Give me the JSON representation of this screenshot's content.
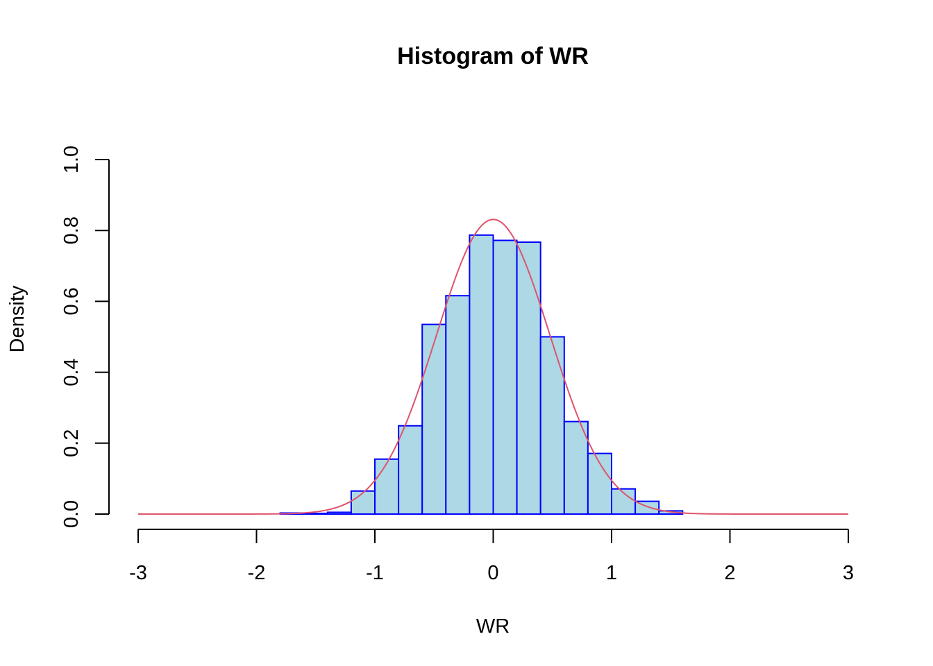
{
  "chart_data": {
    "type": "bar",
    "title": "Histogram of WR",
    "xlabel": "WR",
    "ylabel": "Density",
    "xlim": [
      -3,
      3
    ],
    "ylim": [
      0,
      1
    ],
    "x_ticks": [
      "-3",
      "-2",
      "-1",
      "0",
      "1",
      "2",
      "3"
    ],
    "y_ticks": [
      "0.0",
      "0.2",
      "0.4",
      "0.6",
      "0.8",
      "1.0"
    ],
    "grid": false,
    "bins": [
      {
        "x0": -1.8,
        "x1": -1.6,
        "density": 0.003
      },
      {
        "x0": -1.6,
        "x1": -1.4,
        "density": 0.002
      },
      {
        "x0": -1.4,
        "x1": -1.2,
        "density": 0.005
      },
      {
        "x0": -1.2,
        "x1": -1.0,
        "density": 0.065
      },
      {
        "x0": -1.0,
        "x1": -0.8,
        "density": 0.155
      },
      {
        "x0": -0.8,
        "x1": -0.6,
        "density": 0.249
      },
      {
        "x0": -0.6,
        "x1": -0.4,
        "density": 0.535
      },
      {
        "x0": -0.4,
        "x1": -0.2,
        "density": 0.616
      },
      {
        "x0": -0.2,
        "x1": 0.0,
        "density": 0.787
      },
      {
        "x0": 0.0,
        "x1": 0.2,
        "density": 0.772
      },
      {
        "x0": 0.2,
        "x1": 0.4,
        "density": 0.767
      },
      {
        "x0": 0.4,
        "x1": 0.6,
        "density": 0.5
      },
      {
        "x0": 0.6,
        "x1": 0.8,
        "density": 0.261
      },
      {
        "x0": 0.8,
        "x1": 1.0,
        "density": 0.171
      },
      {
        "x0": 1.0,
        "x1": 1.2,
        "density": 0.071
      },
      {
        "x0": 1.2,
        "x1": 1.4,
        "density": 0.036
      },
      {
        "x0": 1.4,
        "x1": 1.6,
        "density": 0.009
      }
    ],
    "density_curve": {
      "type": "normal",
      "mean": 0,
      "sd": 0.48,
      "x_range": [
        -3,
        3
      ],
      "color": "#DF536B"
    },
    "colors": {
      "bar_fill": "#ADD8E6",
      "bar_border": "#0000FF",
      "curve": "#DF536B"
    }
  }
}
